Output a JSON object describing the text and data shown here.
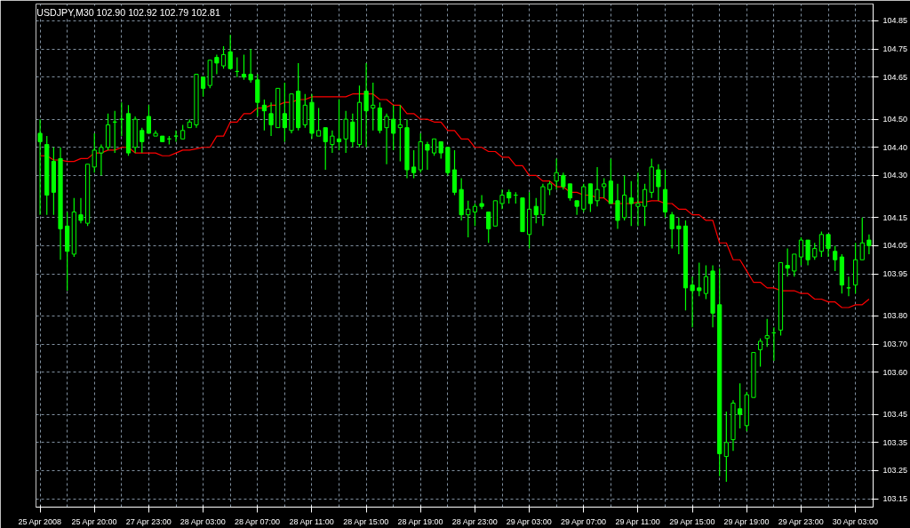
{
  "chart_data": {
    "type": "candlestick",
    "annotations": [
      "USDJPY,M30  102.90 102.92 102.79 102.81"
    ],
    "categories": [
      "25 Apr 2008",
      null,
      null,
      null,
      null,
      null,
      null,
      null,
      "25 Apr 20:00",
      null,
      null,
      null,
      null,
      null,
      null,
      null,
      "27 Apr 23:00",
      null,
      null,
      null,
      null,
      null,
      null,
      null,
      "28 Apr 03:00",
      null,
      null,
      null,
      null,
      null,
      null,
      null,
      "28 Apr 07:00",
      null,
      null,
      null,
      null,
      null,
      null,
      null,
      "28 Apr 11:00",
      null,
      null,
      null,
      null,
      null,
      null,
      null,
      "28 Apr 15:00",
      null,
      null,
      null,
      null,
      null,
      null,
      null,
      "28 Apr 19:00",
      null,
      null,
      null,
      null,
      null,
      null,
      null,
      "28 Apr 23:00",
      null,
      null,
      null,
      null,
      null,
      null,
      null,
      "29 Apr 03:00",
      null,
      null,
      null,
      null,
      null,
      null,
      null,
      "29 Apr 07:00",
      null,
      null,
      null,
      null,
      null,
      null,
      null,
      "29 Apr 11:00",
      null,
      null,
      null,
      null,
      null,
      null,
      null,
      "29 Apr 15:00",
      null,
      null,
      null,
      null,
      null,
      null,
      null,
      "29 Apr 19:00",
      null,
      null,
      null,
      null,
      null,
      null,
      null,
      "29 Apr 23:00",
      null,
      null,
      null,
      null,
      null,
      null,
      null,
      "30 Apr 03:00",
      null,
      null
    ],
    "series": [
      {
        "type": "candlestick",
        "color": "#00ff00",
        "ohlc": [
          [
            104.45,
            104.5,
            104.16,
            104.42
          ],
          [
            104.41,
            104.44,
            104.16,
            104.23
          ],
          [
            104.35,
            104.4,
            104.16,
            104.24
          ],
          [
            104.36,
            104.4,
            104.0,
            104.11
          ],
          [
            104.12,
            104.17,
            103.89,
            104.03
          ],
          [
            104.02,
            104.22,
            104.01,
            104.17
          ],
          [
            104.16,
            104.22,
            104.13,
            104.14
          ],
          [
            104.13,
            104.34,
            104.12,
            104.34
          ],
          [
            104.33,
            104.45,
            104.31,
            104.39
          ],
          [
            104.38,
            104.41,
            104.3,
            104.4
          ],
          [
            104.4,
            104.52,
            104.39,
            104.48
          ],
          [
            104.49,
            104.53,
            104.38,
            104.49
          ],
          [
            104.5,
            104.56,
            104.44,
            104.5
          ],
          [
            104.52,
            104.55,
            104.37,
            104.38
          ],
          [
            104.4,
            104.51,
            104.38,
            104.5
          ],
          [
            104.46,
            104.47,
            104.38,
            104.42
          ],
          [
            104.51,
            104.55,
            104.45,
            104.45
          ],
          [
            104.44,
            104.46,
            104.44,
            104.45
          ],
          [
            104.44,
            104.44,
            104.42,
            104.42
          ],
          [
            104.43,
            104.44,
            104.41,
            104.43
          ],
          [
            104.44,
            104.46,
            104.42,
            104.44
          ],
          [
            104.43,
            104.48,
            104.43,
            104.46
          ],
          [
            104.47,
            104.5,
            104.47,
            104.49
          ],
          [
            104.48,
            104.66,
            104.47,
            104.66
          ],
          [
            104.65,
            104.65,
            104.58,
            104.61
          ],
          [
            104.62,
            104.71,
            104.61,
            104.71
          ],
          [
            104.72,
            104.73,
            104.66,
            104.7
          ],
          [
            104.69,
            104.76,
            104.68,
            104.73
          ],
          [
            104.74,
            104.8,
            104.68,
            104.68
          ],
          [
            104.67,
            104.72,
            104.65,
            104.67
          ],
          [
            104.66,
            104.73,
            104.64,
            104.65
          ],
          [
            104.66,
            104.75,
            104.63,
            104.64
          ],
          [
            104.64,
            104.66,
            104.51,
            104.56
          ],
          [
            104.55,
            104.57,
            104.46,
            104.53
          ],
          [
            104.52,
            104.56,
            104.44,
            104.48
          ],
          [
            104.47,
            104.61,
            104.47,
            104.61
          ],
          [
            104.52,
            104.63,
            104.42,
            104.47
          ],
          [
            104.46,
            104.59,
            104.45,
            104.59
          ],
          [
            104.6,
            104.7,
            104.46,
            104.47
          ],
          [
            104.48,
            104.59,
            104.47,
            104.55
          ],
          [
            104.56,
            104.59,
            104.43,
            104.45
          ],
          [
            104.44,
            104.54,
            104.44,
            104.46
          ],
          [
            104.47,
            104.47,
            104.32,
            104.42
          ],
          [
            104.41,
            104.46,
            104.38,
            104.44
          ],
          [
            104.43,
            104.57,
            104.39,
            104.42
          ],
          [
            104.43,
            104.53,
            104.38,
            104.5
          ],
          [
            104.49,
            104.52,
            104.4,
            104.42
          ],
          [
            104.41,
            104.62,
            104.4,
            104.56
          ],
          [
            104.6,
            104.7,
            104.4,
            104.53
          ],
          [
            104.54,
            104.63,
            104.46,
            104.55
          ],
          [
            104.54,
            104.56,
            104.45,
            104.46
          ],
          [
            104.47,
            104.52,
            104.34,
            104.51
          ],
          [
            104.5,
            104.55,
            104.39,
            104.45
          ],
          [
            104.47,
            104.55,
            104.35,
            104.48
          ],
          [
            104.47,
            104.5,
            104.29,
            104.32
          ],
          [
            104.33,
            104.39,
            104.29,
            104.31
          ],
          [
            104.32,
            104.45,
            104.31,
            104.42
          ],
          [
            104.41,
            104.42,
            104.32,
            104.39
          ],
          [
            104.38,
            104.43,
            104.37,
            104.43
          ],
          [
            104.42,
            104.42,
            104.36,
            104.38
          ],
          [
            104.4,
            104.4,
            104.3,
            104.31
          ],
          [
            104.32,
            104.39,
            104.23,
            104.24
          ],
          [
            104.25,
            104.29,
            104.14,
            104.16
          ],
          [
            104.16,
            104.21,
            104.08,
            104.18
          ],
          [
            104.17,
            104.2,
            104.12,
            104.19
          ],
          [
            104.2,
            104.23,
            104.18,
            104.19
          ],
          [
            104.17,
            104.17,
            104.06,
            104.11
          ],
          [
            104.12,
            104.21,
            104.12,
            104.21
          ],
          [
            104.2,
            104.25,
            104.18,
            104.23
          ],
          [
            104.24,
            104.25,
            104.2,
            104.22
          ],
          [
            104.23,
            104.24,
            104.2,
            104.23
          ],
          [
            104.22,
            104.22,
            104.1,
            104.1
          ],
          [
            104.09,
            104.24,
            104.04,
            104.18
          ],
          [
            104.19,
            104.22,
            104.13,
            104.16
          ],
          [
            104.16,
            104.27,
            104.12,
            104.26
          ],
          [
            104.25,
            104.28,
            104.23,
            104.27
          ],
          [
            104.28,
            104.36,
            104.25,
            104.31
          ],
          [
            104.3,
            104.31,
            104.25,
            104.26
          ],
          [
            104.27,
            104.27,
            104.21,
            104.22
          ],
          [
            104.21,
            104.21,
            104.16,
            104.19
          ],
          [
            104.18,
            104.27,
            104.17,
            104.26
          ],
          [
            104.27,
            104.27,
            104.17,
            104.2
          ],
          [
            104.21,
            104.33,
            104.19,
            104.25
          ],
          [
            104.26,
            104.29,
            104.22,
            104.27
          ],
          [
            104.28,
            104.36,
            104.2,
            104.2
          ],
          [
            104.21,
            104.27,
            104.11,
            104.14
          ],
          [
            104.15,
            104.3,
            104.14,
            104.23
          ],
          [
            104.22,
            104.28,
            104.12,
            104.2
          ],
          [
            104.19,
            104.31,
            104.12,
            104.2
          ],
          [
            104.19,
            104.27,
            104.12,
            104.25
          ],
          [
            104.24,
            104.36,
            104.22,
            104.33
          ],
          [
            104.32,
            104.34,
            104.21,
            104.26
          ],
          [
            104.25,
            104.32,
            104.15,
            104.17
          ],
          [
            104.16,
            104.17,
            104.04,
            104.11
          ],
          [
            104.12,
            104.15,
            104.02,
            104.11
          ],
          [
            104.12,
            104.14,
            103.82,
            103.9
          ],
          [
            103.91,
            103.94,
            103.76,
            103.89
          ],
          [
            103.9,
            103.99,
            103.87,
            103.89
          ],
          [
            103.88,
            103.98,
            103.86,
            103.94
          ],
          [
            103.96,
            103.98,
            103.76,
            103.81
          ],
          [
            103.84,
            103.97,
            103.23,
            103.31
          ],
          [
            103.3,
            103.46,
            103.21,
            103.35
          ],
          [
            103.36,
            103.5,
            103.32,
            103.49
          ],
          [
            103.47,
            103.56,
            103.4,
            103.45
          ],
          [
            103.41,
            103.53,
            103.39,
            103.52
          ],
          [
            103.51,
            103.67,
            103.51,
            103.67
          ],
          [
            103.68,
            103.72,
            103.62,
            103.71
          ],
          [
            103.72,
            103.79,
            103.69,
            103.73
          ],
          [
            103.74,
            103.76,
            103.64,
            103.74
          ],
          [
            103.75,
            103.99,
            103.73,
            103.99
          ],
          [
            103.98,
            104.04,
            103.94,
            103.97
          ],
          [
            103.96,
            104.02,
            103.94,
            104.02
          ],
          [
            104.01,
            104.08,
            103.98,
            104.07
          ],
          [
            104.07,
            104.07,
            103.98,
            104.0
          ],
          [
            104.01,
            104.06,
            104.0,
            104.04
          ],
          [
            104.03,
            104.1,
            104.01,
            104.09
          ],
          [
            104.09,
            104.09,
            104.01,
            104.04
          ],
          [
            104.03,
            104.05,
            103.96,
            104.0
          ],
          [
            104.01,
            104.02,
            103.88,
            103.91
          ],
          [
            103.9,
            103.94,
            103.87,
            103.9
          ],
          [
            103.91,
            104.06,
            103.88,
            104.0
          ],
          [
            104.0,
            104.15,
            104.0,
            104.06
          ],
          [
            104.07,
            104.09,
            104.02,
            104.05
          ]
        ]
      },
      {
        "type": "line",
        "color": "#ff0000",
        "values": [
          104.37,
          104.37,
          104.355,
          104.355,
          104.35,
          104.35,
          104.36,
          104.36,
          104.38,
          104.38,
          104.39,
          104.39,
          104.4,
          104.4,
          104.38,
          104.38,
          104.38,
          104.38,
          104.37,
          104.37,
          104.38,
          104.39,
          104.39,
          104.395,
          104.4,
          104.4,
          104.44,
          104.44,
          104.49,
          104.49,
          104.52,
          104.52,
          104.54,
          104.54,
          104.55,
          104.55,
          104.56,
          104.56,
          104.57,
          104.57,
          104.58,
          104.58,
          104.58,
          104.58,
          104.58,
          104.58,
          104.59,
          104.59,
          104.59,
          104.59,
          104.57,
          104.57,
          104.55,
          104.55,
          104.52,
          104.52,
          104.5,
          104.5,
          104.49,
          104.49,
          104.46,
          104.46,
          104.43,
          104.43,
          104.4,
          104.4,
          104.385,
          104.385,
          104.365,
          104.365,
          104.335,
          104.335,
          104.3,
          104.3,
          104.28,
          104.28,
          104.26,
          104.26,
          104.24,
          104.24,
          104.23,
          104.23,
          104.22,
          104.22,
          104.2,
          104.2,
          104.2,
          104.2,
          104.205,
          104.205,
          104.21,
          104.21,
          104.2,
          104.2,
          104.18,
          104.18,
          104.16,
          104.16,
          104.14,
          104.14,
          104.06,
          104.06,
          104.0,
          104.0,
          103.96,
          103.92,
          103.92,
          103.9,
          103.9,
          103.89,
          103.89,
          103.89,
          103.88,
          103.88,
          103.86,
          103.86,
          103.85,
          103.85,
          103.83,
          103.83,
          103.84,
          103.84,
          103.86
        ]
      }
    ],
    "ylim": [
      103.12,
      104.91
    ],
    "yticks": [
      {
        "value": 103.15,
        "label": "103.15"
      },
      {
        "value": 103.25,
        "label": "103.25"
      },
      {
        "value": 103.35,
        "label": "103.35"
      },
      {
        "value": 103.45,
        "label": "103.45"
      },
      {
        "value": 103.6,
        "label": "103.60"
      },
      {
        "value": 103.7,
        "label": "103.70"
      },
      {
        "value": 103.8,
        "label": "103.80"
      },
      {
        "value": 103.95,
        "label": "103.95"
      },
      {
        "value": 104.05,
        "label": "104.05"
      },
      {
        "value": 104.15,
        "label": "104.15"
      },
      {
        "value": 104.3,
        "label": "104.30"
      },
      {
        "value": 104.4,
        "label": "104.40"
      },
      {
        "value": 104.5,
        "label": "104.50"
      },
      {
        "value": 104.65,
        "label": "104.65"
      },
      {
        "value": 104.75,
        "label": "104.75"
      },
      {
        "value": 104.85,
        "label": "104.85"
      }
    ],
    "grid": true
  }
}
